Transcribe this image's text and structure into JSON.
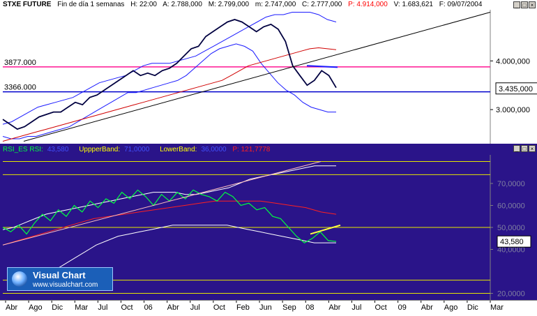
{
  "top_header": {
    "symbol": "STXE FUTURE",
    "period": "Fin de día 1 semanas",
    "high": "H: 22:00",
    "a_val": "A: 2.788,000",
    "m_val": "M: 2.799,000",
    "low_val": "m: 2.747,000",
    "close_val": "C: 2.777,000",
    "p_val": "P: 4.914,000",
    "v_val": "V: 1.683,621",
    "date": "F: 09/07/2004"
  },
  "bottom_header": {
    "title": "RSI_ES RSI:",
    "rsi_val": "43,580",
    "upper_label": "UppperBand:",
    "upper_val": "71,0000",
    "lower_label": "LowerBand:",
    "lower_val": "36,0000",
    "p_val": "P: 121,7778"
  },
  "window_buttons": [
    "_",
    "□",
    "×"
  ],
  "logo": {
    "title": "Visual Chart",
    "url": "www.visualchart.com"
  },
  "colors": {
    "price": "#000040",
    "bollinger": "#1a1aff",
    "moving_avg": "#d00000",
    "trend": "#000000",
    "level_pink": "#ff1493",
    "level_blue": "#0000cc",
    "rsi_line": "#00ff40",
    "rsi_band": "#ffffff",
    "rsi_ma": "#ff2020",
    "rsi_hline": "#e6e600",
    "rsi_bg": "#2a1489"
  },
  "chart_data": [
    {
      "type": "line",
      "title": "",
      "ylim": [
        2300,
        5050
      ],
      "y_ticks": [
        {
          "value": 3000,
          "label": "3.000,000"
        },
        {
          "value": 4000,
          "label": "4.000,000"
        }
      ],
      "levels": [
        {
          "value": 3877,
          "label": "3877.000",
          "color": "#ff1493"
        },
        {
          "value": 3366,
          "label": "3366.000",
          "color": "#0000cc"
        }
      ],
      "last_price_label": "3.435,000",
      "x_labels": [
        "Abr",
        "Ago",
        "Dic",
        "Mar",
        "Jul",
        "Oct",
        "06",
        "Abr",
        "Jul",
        "Oct",
        "Feb",
        "Jun",
        "Sep",
        "08",
        "Abr",
        "Jul",
        "Oct",
        "09",
        "Abr",
        "Ago",
        "Dic",
        "Mar"
      ],
      "series": [
        {
          "name": "price",
          "values": [
            2800,
            2700,
            2600,
            2650,
            2750,
            2850,
            2900,
            2950,
            2950,
            3050,
            3150,
            3100,
            3250,
            3300,
            3400,
            3500,
            3600,
            3700,
            3800,
            3700,
            3750,
            3700,
            3800,
            3850,
            3950,
            4100,
            4250,
            4300,
            4500,
            4600,
            4700,
            4800,
            4850,
            4800,
            4700,
            4600,
            4700,
            4750,
            4650,
            4400,
            3900,
            3700,
            3500,
            3600,
            3800,
            3700,
            3450
          ]
        },
        {
          "name": "upper band",
          "values": [
            2700,
            2750,
            2850,
            2950,
            3050,
            3100,
            3150,
            3200,
            3250,
            3350,
            3450,
            3550,
            3600,
            3650,
            3700,
            3800,
            3900,
            3950,
            3950,
            3950,
            4000,
            4050,
            4100,
            4200,
            4300,
            4400,
            4500,
            4600,
            4700,
            4800,
            4900,
            4950,
            4950,
            5000,
            5000,
            5000,
            4950,
            4850,
            4800
          ]
        },
        {
          "name": "lower band",
          "values": [
            2450,
            2400,
            2400,
            2450,
            2450,
            2500,
            2550,
            2600,
            2650,
            2750,
            2850,
            2950,
            3050,
            3150,
            3250,
            3350,
            3350,
            3400,
            3450,
            3500,
            3550,
            3600,
            3700,
            3850,
            4000,
            4150,
            4250,
            4300,
            4350,
            4300,
            4200,
            3950,
            3750,
            3550,
            3400,
            3300,
            3150,
            3050,
            3000,
            2950,
            2950
          ]
        },
        {
          "name": "moving average",
          "values": [
            2350,
            2400,
            2450,
            2500,
            2550,
            2600,
            2650,
            2700,
            2750,
            2800,
            2850,
            2900,
            2950,
            3000,
            3050,
            3100,
            3150,
            3200,
            3250,
            3300,
            3350,
            3400,
            3450,
            3500,
            3550,
            3600,
            3700,
            3800,
            3900,
            3950,
            4000,
            4050,
            4100,
            4150,
            4200,
            4250,
            4270,
            4250,
            4230
          ]
        }
      ]
    },
    {
      "type": "line",
      "title": "RSI_ES",
      "ylim": [
        17,
        83
      ],
      "y_ticks": [
        {
          "value": 70,
          "label": "70,0000"
        },
        {
          "value": 60,
          "label": "60,0000"
        },
        {
          "value": 50,
          "label": "50,0000"
        },
        {
          "value": 40,
          "label": "40,0000"
        },
        {
          "value": 20,
          "label": "20,0000"
        }
      ],
      "hlines": [
        80,
        74,
        50,
        26,
        20
      ],
      "last_value_label": "43,580",
      "series": [
        {
          "name": "RSI",
          "values": [
            50,
            48,
            51,
            47,
            52,
            56,
            53,
            58,
            55,
            60,
            57,
            62,
            59,
            63,
            61,
            66,
            63,
            67,
            64,
            60,
            65,
            62,
            66,
            63,
            67,
            65,
            64,
            62,
            66,
            64,
            60,
            61,
            58,
            59,
            55,
            54,
            50,
            46,
            43,
            45,
            48,
            44,
            43.6
          ]
        },
        {
          "name": "band",
          "values": [
            49,
            50,
            52,
            54,
            56,
            57,
            58,
            59,
            60,
            61,
            62,
            63,
            64,
            65,
            66,
            66,
            66,
            65,
            65,
            66,
            67,
            68,
            70,
            72,
            73,
            74,
            75,
            76,
            77,
            78,
            78,
            78
          ]
        },
        {
          "name": "band lower",
          "values": [
            27,
            30,
            33,
            36,
            39,
            42,
            44,
            46,
            47,
            48,
            49,
            50,
            51,
            51,
            51,
            51,
            51,
            51,
            50,
            49,
            48,
            47,
            46,
            45,
            44,
            43,
            43,
            43
          ]
        },
        {
          "name": "RSI average",
          "values": [
            42,
            44,
            46,
            48,
            50,
            52,
            54,
            55,
            56,
            57,
            58,
            59,
            60,
            61,
            62,
            62,
            62,
            62,
            61,
            60,
            59,
            57,
            56
          ]
        }
      ]
    }
  ]
}
